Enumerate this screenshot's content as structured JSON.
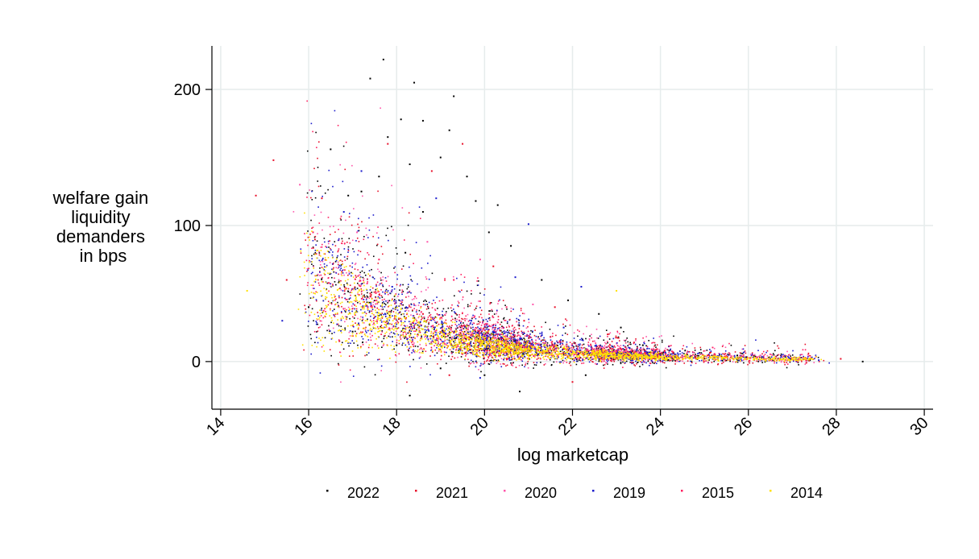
{
  "chart_data": {
    "type": "scatter",
    "xlabel": "log marketcap",
    "ylabel": [
      "welfare gain",
      "liquidity",
      "demanders",
      "in bps"
    ],
    "xlim": [
      13.8,
      30.2
    ],
    "ylim": [
      -35,
      232
    ],
    "x_ticks": [
      14,
      16,
      18,
      20,
      22,
      24,
      26,
      28,
      30
    ],
    "y_ticks": [
      0,
      100,
      200
    ],
    "x_tick_labels": [
      "14",
      "16",
      "18",
      "20",
      "22",
      "24",
      "26",
      "28",
      "30"
    ],
    "y_tick_labels": [
      "0",
      "100",
      "200"
    ],
    "grid": true,
    "legend_position": "bottom",
    "series": [
      {
        "name": "2022",
        "color": "#000000",
        "points": [
          [
            17.7,
            222
          ],
          [
            17.4,
            208
          ],
          [
            18.4,
            205
          ],
          [
            19.3,
            195
          ],
          [
            18.1,
            178
          ],
          [
            18.6,
            177
          ],
          [
            19.2,
            170
          ],
          [
            16.5,
            156
          ],
          [
            17.8,
            165
          ],
          [
            17.6,
            136
          ],
          [
            19.6,
            136
          ],
          [
            18.3,
            145
          ],
          [
            19.0,
            150
          ],
          [
            20.3,
            115
          ],
          [
            19.8,
            118
          ],
          [
            17.2,
            125
          ],
          [
            16.9,
            122
          ],
          [
            18.6,
            110
          ],
          [
            20.1,
            95
          ],
          [
            20.6,
            85
          ],
          [
            18.2,
            80
          ],
          [
            21.3,
            60
          ],
          [
            21.9,
            45
          ],
          [
            22.6,
            35
          ],
          [
            23.1,
            25
          ],
          [
            16.0,
            40
          ],
          [
            17.0,
            22
          ],
          [
            18.0,
            12
          ],
          [
            19.0,
            -5
          ],
          [
            20.0,
            -10
          ],
          [
            20.8,
            -22
          ],
          [
            18.3,
            -25
          ],
          [
            22.3,
            -10
          ],
          [
            23.6,
            12
          ],
          [
            24.2,
            8
          ],
          [
            25.0,
            4
          ],
          [
            25.8,
            3
          ],
          [
            26.5,
            2
          ],
          [
            27.4,
            1
          ],
          [
            28.6,
            0
          ]
        ]
      },
      {
        "name": "2021",
        "color": "#e8102a",
        "points": [
          [
            15.2,
            148
          ],
          [
            14.8,
            122
          ],
          [
            16.3,
            120
          ],
          [
            17.8,
            160
          ],
          [
            19.5,
            160
          ],
          [
            18.8,
            140
          ],
          [
            20.2,
            70
          ],
          [
            21.6,
            40
          ],
          [
            15.5,
            60
          ],
          [
            17.4,
            50
          ],
          [
            18.6,
            35
          ],
          [
            20.9,
            30
          ],
          [
            22.8,
            20
          ],
          [
            24.1,
            8
          ],
          [
            26.2,
            3
          ],
          [
            28.1,
            2
          ],
          [
            22.0,
            -15
          ],
          [
            19.2,
            -10
          ],
          [
            16.7,
            15
          ],
          [
            23.4,
            14
          ]
        ]
      },
      {
        "name": "2020",
        "color": "#ff55aa",
        "points": [
          [
            15.8,
            130
          ],
          [
            17.1,
            95
          ],
          [
            18.7,
            88
          ],
          [
            19.9,
            75
          ],
          [
            21.1,
            42
          ],
          [
            16.6,
            45
          ],
          [
            18.1,
            30
          ],
          [
            20.4,
            20
          ],
          [
            22.5,
            15
          ],
          [
            24.6,
            6
          ]
        ]
      },
      {
        "name": "2019",
        "color": "#1a1acc",
        "points": [
          [
            17.2,
            140
          ],
          [
            16.8,
            110
          ],
          [
            18.9,
            120
          ],
          [
            20.7,
            62
          ],
          [
            21.0,
            101
          ],
          [
            22.2,
            55
          ],
          [
            17.9,
            55
          ],
          [
            19.7,
            30
          ],
          [
            21.8,
            25
          ],
          [
            19.9,
            -12
          ],
          [
            23.3,
            10
          ],
          [
            25.3,
            4
          ],
          [
            27.6,
            1
          ],
          [
            15.4,
            30
          ]
        ]
      },
      {
        "name": "2015",
        "color": "#ff2060",
        "points": [
          [
            16.1,
            95
          ],
          [
            17.6,
            75
          ],
          [
            19.3,
            60
          ],
          [
            20.5,
            40
          ],
          [
            18.5,
            25
          ],
          [
            21.5,
            18
          ],
          [
            23.8,
            9
          ],
          [
            25.6,
            3
          ]
        ]
      },
      {
        "name": "2014",
        "color": "#ffe000",
        "points": [
          [
            14.6,
            52
          ],
          [
            16.4,
            35
          ],
          [
            17.3,
            42
          ],
          [
            18.4,
            30
          ],
          [
            19.6,
            18
          ],
          [
            20.6,
            10
          ],
          [
            21.7,
            6
          ],
          [
            22.9,
            4
          ],
          [
            23.0,
            52
          ],
          [
            24.4,
            3
          ],
          [
            25.4,
            2
          ],
          [
            26.7,
            1
          ]
        ]
      }
    ]
  }
}
